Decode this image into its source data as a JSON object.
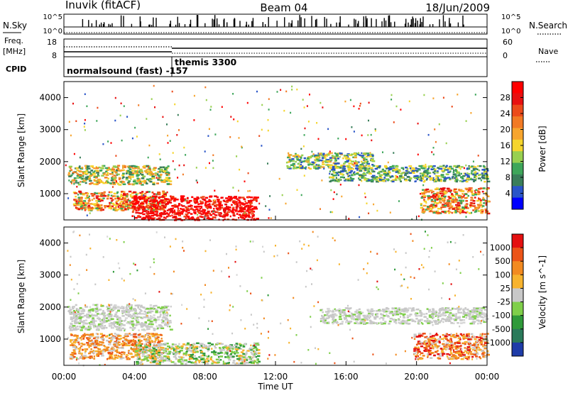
{
  "header": {
    "station": "Inuvik (fitACF)",
    "beam": "Beam 04",
    "date": "18/Jun/2009"
  },
  "side_labels": {
    "nsky": "N.Sky",
    "freq_top": "Freq.",
    "freq_unit": "[MHz]",
    "cpid": "CPID",
    "nsearch": "N.Search",
    "nave": "Nave"
  },
  "top_axes": {
    "nsky_ticks": [
      "10^5",
      "10^0"
    ],
    "nsearch_ticks": [
      "10^5",
      "10^0"
    ],
    "freq_ticks": [
      "18",
      "8"
    ],
    "nave_ticks": [
      "60",
      "0"
    ]
  },
  "cpid_modes": [
    {
      "label": "normalsound (fast) -157",
      "start_hour": 0
    },
    {
      "label": "themis 3300",
      "start_hour": 6
    }
  ],
  "chart_data": [
    {
      "type": "heatmap",
      "panel": "power",
      "ylabel": "Slant Range [km]",
      "xlabel": "",
      "xlim": [
        0,
        24
      ],
      "ylim": [
        180,
        4500
      ],
      "yticks": [
        "4000",
        "3000",
        "2000",
        "1000"
      ],
      "colorbar": {
        "label": "Power [dB]",
        "ticks": [
          "28",
          "24",
          "20",
          "16",
          "12",
          "8",
          "4"
        ],
        "colors": [
          "#0000ff",
          "#2a55c8",
          "#3a7e5a",
          "#3ea65a",
          "#98d050",
          "#f5d52c",
          "#f7a52e",
          "#f27a24",
          "#ec4a1a",
          "#e81010",
          "#ff0000"
        ]
      },
      "regions": [
        {
          "x": [
            0.2,
            6.0
          ],
          "y": [
            1300,
            1900
          ],
          "level": "orange-green"
        },
        {
          "x": [
            0.5,
            5.8
          ],
          "y": [
            500,
            1100
          ],
          "level": "orange-red"
        },
        {
          "x": [
            3.8,
            10.9
          ],
          "y": [
            200,
            950
          ],
          "level": "red"
        },
        {
          "x": [
            12.6,
            17.5
          ],
          "y": [
            1800,
            2300
          ],
          "level": "green-orange"
        },
        {
          "x": [
            15.0,
            24.0
          ],
          "y": [
            1400,
            1900
          ],
          "level": "green"
        },
        {
          "x": [
            20.2,
            24.0
          ],
          "y": [
            400,
            1200
          ],
          "level": "orange-red"
        }
      ]
    },
    {
      "type": "heatmap",
      "panel": "velocity",
      "ylabel": "Slant Range [km]",
      "xlabel": "Time UT",
      "xlim": [
        0,
        24
      ],
      "ylim": [
        180,
        4500
      ],
      "xticks": [
        "00:00",
        "04:00",
        "08:00",
        "12:00",
        "16:00",
        "20:00",
        "00:00"
      ],
      "yticks": [
        "4000",
        "3000",
        "2000",
        "1000"
      ],
      "colorbar": {
        "label": "Velocity [m s^-1]",
        "ticks": [
          "1000",
          "500",
          "100",
          "25",
          "-25",
          "-100",
          "-500",
          "-1000"
        ],
        "colors": [
          "#1e3ca8",
          "#2a7a5a",
          "#2f9a3a",
          "#7fcf4a",
          "#c8c8c8",
          "#f7b32e",
          "#f28a20",
          "#ec5418",
          "#e41010"
        ]
      },
      "regions": [
        {
          "x": [
            0.2,
            6.0
          ],
          "y": [
            1300,
            2100
          ],
          "level": "grey"
        },
        {
          "x": [
            0.3,
            5.5
          ],
          "y": [
            400,
            1200
          ],
          "level": "orange"
        },
        {
          "x": [
            4.0,
            11.0
          ],
          "y": [
            250,
            900
          ],
          "level": "grey-green"
        },
        {
          "x": [
            14.5,
            24.0
          ],
          "y": [
            1500,
            2000
          ],
          "level": "grey"
        },
        {
          "x": [
            19.8,
            24.0
          ],
          "y": [
            400,
            1200
          ],
          "level": "orange-red"
        }
      ]
    }
  ],
  "colors": {
    "axis": "#000000",
    "background": "#ffffff"
  }
}
